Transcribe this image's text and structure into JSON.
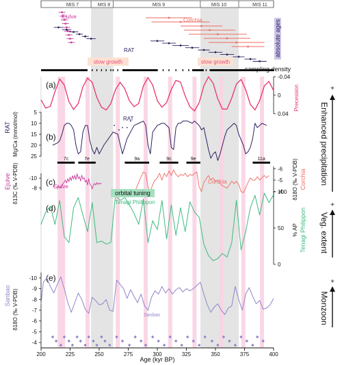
{
  "mis_labels": [
    "MIS 7",
    "MIS 8",
    "MIS 9",
    "MIS 10",
    "MIS 11"
  ],
  "panels": {
    "a": "(a)",
    "b": "(b)",
    "c": "(c)",
    "d": "(d)",
    "e": "(e)"
  },
  "top_labels": {
    "ejulve": "Ejulve",
    "corchia": "Corchia",
    "rat": "RAT",
    "absolute_ages": "absolute ages",
    "slow_growth_1": "slow growth",
    "slow_growth_2": "slow growth",
    "sampling_density": "sampling density"
  },
  "axis_labels": {
    "precession": "Precession",
    "rat_series": "RAT",
    "mgca": "Mg/Ca (mmol/mol)",
    "ejulve_series": "Ejulve",
    "d13c": "δ13C (‰ V-PDB)",
    "d18o_corchia": "δ18O (‰ V-PDB)",
    "corchia_series": "Corchia",
    "ap": "% AP",
    "tenagi": "Tenagi Philippon",
    "sanbao_series": "Sanbao",
    "d18o_sanbao": "δ18O (‰ V-PDB)",
    "xlabel": "Age (kyr BP)"
  },
  "annotations": {
    "rat_inline": "RAT",
    "ejulve_inline": "Ejulve",
    "corchia_inline": "Corchia",
    "tenagi_inline": "Tenagi Philippon",
    "orbital_tuning": "orbital tuning",
    "sanbao_inline": "Sanbao"
  },
  "substages": [
    "7c",
    "7e",
    "9a",
    "9c",
    "9e",
    "11a"
  ],
  "right_side": {
    "enhanced_precipitation": "Enhanced precipitation",
    "veg_extent": "Veg. extent",
    "monzoon": "Monzoon",
    "plus": "+"
  },
  "colors": {
    "precession": "#e8336d",
    "rat": "#2e2060",
    "ejulve": "#c8399c",
    "corchia": "#ef6a5f",
    "tenagi": "#3dba7e",
    "sanbao": "#8f86c8",
    "glacial_band": "#e4e4e4",
    "pink_band": "#f9d3e3",
    "absolute_ages_box": "#cdc6e6",
    "slow_growth_box": "#fce1d2",
    "orbital_box": "#a4e0bf"
  },
  "chart_data": {
    "type": "line",
    "xlabel": "Age (kyr BP)",
    "xlim": [
      200,
      400
    ],
    "xticks": [
      200,
      225,
      250,
      275,
      300,
      325,
      350,
      375,
      400
    ],
    "glacial_intervals": [
      [
        243,
        262
      ],
      [
        337,
        370
      ]
    ],
    "insolation_maxima_bands": [
      216,
      219,
      240,
      266,
      290,
      311,
      332,
      355,
      374,
      390
    ],
    "mis_boundaries": [
      200,
      243,
      262,
      337,
      370,
      400
    ],
    "substage_bars": [
      [
        214,
        229
      ],
      [
        232,
        247
      ],
      [
        272,
        293
      ],
      [
        302,
        318
      ],
      [
        325,
        337
      ],
      [
        382,
        397
      ]
    ],
    "precession": {
      "axis": "precession",
      "ylim": [
        0.04,
        -0.04
      ],
      "ticks": [
        -0.04,
        0,
        0.04
      ],
      "x": [
        200,
        204,
        208,
        212,
        216,
        220,
        224,
        228,
        232,
        236,
        240,
        244,
        248,
        252,
        256,
        260,
        264,
        268,
        272,
        276,
        280,
        284,
        288,
        292,
        296,
        300,
        304,
        308,
        312,
        316,
        320,
        324,
        328,
        332,
        336,
        340,
        344,
        348,
        352,
        356,
        360,
        364,
        368,
        372,
        376,
        380,
        384,
        388,
        392,
        396,
        400
      ],
      "y": [
        0.01,
        0.028,
        0.024,
        -0.008,
        -0.035,
        -0.022,
        0.014,
        0.031,
        0.018,
        -0.018,
        -0.037,
        -0.028,
        0.005,
        0.026,
        0.032,
        0.018,
        -0.012,
        -0.028,
        -0.014,
        0.012,
        0.025,
        0.018,
        -0.02,
        -0.038,
        -0.022,
        0.012,
        0.026,
        0.016,
        -0.012,
        -0.032,
        -0.028,
        0.002,
        0.025,
        0.034,
        0.016,
        -0.02,
        -0.04,
        -0.026,
        0.008,
        0.03,
        0.03,
        0.006,
        -0.024,
        -0.034,
        -0.012,
        0.02,
        0.032,
        0.012,
        -0.02,
        -0.03,
        -0.01
      ]
    },
    "rat_mgca": {
      "axis": "mgca",
      "ylim": [
        25,
        5
      ],
      "ticks": [
        5,
        10,
        15,
        20,
        25
      ],
      "x": [
        210,
        214,
        216,
        218,
        220,
        222,
        224,
        226,
        228,
        230,
        232,
        234,
        236,
        238,
        240,
        242,
        244,
        246,
        248,
        250,
        254,
        258,
        262,
        266,
        270,
        274,
        280,
        284,
        288,
        290,
        292,
        294,
        296,
        300,
        304,
        306,
        308,
        310,
        312,
        314,
        316,
        318,
        320,
        322,
        326,
        330,
        332,
        334,
        336,
        338,
        340,
        342,
        344,
        346,
        348,
        350,
        352,
        354,
        356,
        358,
        360,
        364,
        366,
        368,
        370,
        374,
        376,
        378,
        380,
        382,
        384,
        386,
        388,
        390,
        394
      ],
      "y": [
        20,
        19,
        18,
        15,
        11,
        10,
        10,
        11,
        13,
        20,
        24,
        23,
        14,
        11,
        11,
        18,
        22,
        24,
        21,
        24,
        20,
        17,
        14,
        15,
        24,
        17,
        11,
        10,
        9,
        11,
        20,
        24,
        14,
        11,
        10,
        10,
        11,
        12,
        21,
        22,
        12,
        10,
        10,
        9,
        9,
        10,
        9,
        10,
        11,
        13,
        12,
        17,
        22,
        26,
        24,
        23,
        27,
        24,
        20,
        16,
        13,
        11,
        10,
        11,
        15,
        20,
        24,
        23,
        21,
        17,
        10,
        12,
        11,
        10,
        11
      ]
    },
    "rat_points": {
      "x": [
        263,
        267,
        270,
        274,
        277
      ],
      "y": [
        11,
        13,
        12,
        12,
        9
      ]
    },
    "ejulve_d13c": {
      "axis": "d13c",
      "ylim": [
        -7.5,
        -11
      ],
      "ticks": [
        -8,
        -10
      ],
      "x": [
        213,
        215,
        217,
        219,
        221,
        222,
        223,
        224,
        225,
        226,
        227,
        228,
        229,
        230,
        231,
        232,
        233,
        234,
        235,
        236,
        237,
        238,
        239,
        240,
        241,
        242,
        243,
        244,
        245,
        246,
        247,
        248,
        249,
        250,
        251,
        252
      ],
      "y": [
        -8.1,
        -8.3,
        -8.0,
        -8.9,
        -9.6,
        -9.0,
        -9.9,
        -9.3,
        -10.2,
        -9.5,
        -10.5,
        -9.8,
        -10.6,
        -9.7,
        -10.9,
        -9.9,
        -10.3,
        -9.4,
        -10.6,
        -9.8,
        -10.1,
        -9.2,
        -9.6,
        -8.6,
        -9.9,
        -8.8,
        -8.5,
        -7.8,
        -8.6,
        -8.9,
        -8.6,
        -9.1,
        -8.7,
        -9.0,
        -8.8,
        -9.0
      ]
    },
    "corchia_d18o": {
      "axis": "d18o_corchia",
      "ylim": [
        -3.5,
        -6.2
      ],
      "ticks": [
        -4,
        -5,
        -6
      ],
      "x": [
        280,
        282,
        284,
        286,
        288,
        290,
        292,
        294,
        296,
        298,
        300,
        302,
        304,
        306,
        308,
        310,
        312,
        314,
        316,
        318,
        320,
        322,
        324,
        326,
        328,
        330,
        332,
        334,
        336,
        338,
        340,
        342,
        344,
        346,
        348,
        350,
        352,
        354,
        356,
        358,
        360,
        362,
        364,
        366,
        368,
        370,
        372,
        374,
        376,
        378,
        380,
        382,
        384,
        386,
        388,
        390,
        392,
        394,
        396
      ],
      "y": [
        -3.9,
        -4.3,
        -4.8,
        -5.3,
        -5.7,
        -5.6,
        -4.4,
        -4.0,
        -4.6,
        -5.0,
        -5.2,
        -5.6,
        -5.0,
        -5.6,
        -5.3,
        -5.8,
        -5.4,
        -5.9,
        -5.5,
        -5.3,
        -5.5,
        -5.4,
        -5.6,
        -5.3,
        -5.5,
        -5.4,
        -5.6,
        -5.7,
        -4.4,
        -4.0,
        -4.8,
        -5.1,
        -5.4,
        -5.0,
        -5.2,
        -4.9,
        -5.0,
        -4.7,
        -4.5,
        -4.4,
        -4.3,
        -4.6,
        -4.9,
        -4.7,
        -4.9,
        -4.6,
        -4.0,
        -3.9,
        -4.3,
        -4.8,
        -5.2,
        -5.0,
        -5.0,
        -5.3,
        -5.0,
        -5.2,
        -5.4,
        -5.2,
        -5.4
      ]
    },
    "tenagi_ap": {
      "axis": "ap",
      "ylim": [
        0,
        100
      ],
      "ticks": [
        0,
        50,
        100
      ],
      "x": [
        200,
        204,
        208,
        212,
        216,
        220,
        224,
        228,
        232,
        236,
        240,
        244,
        248,
        252,
        256,
        260,
        264,
        268,
        272,
        276,
        280,
        284,
        288,
        292,
        296,
        300,
        304,
        308,
        312,
        316,
        320,
        324,
        328,
        332,
        336,
        340,
        344,
        348,
        352,
        356,
        360,
        364,
        368,
        372,
        376,
        380,
        384,
        388,
        392,
        396,
        400
      ],
      "y": [
        55,
        72,
        80,
        55,
        88,
        38,
        30,
        78,
        92,
        68,
        45,
        85,
        30,
        32,
        28,
        30,
        95,
        88,
        92,
        82,
        70,
        55,
        90,
        30,
        60,
        48,
        88,
        35,
        82,
        40,
        78,
        45,
        86,
        72,
        65,
        28,
        12,
        5,
        8,
        15,
        10,
        30,
        88,
        20,
        45,
        78,
        95,
        68,
        98,
        85,
        96
      ]
    },
    "sanbao_d18o": {
      "axis": "d18o_sanbao",
      "ylim": [
        -3.5,
        -10.5
      ],
      "ticks": [
        -4,
        -5,
        -6,
        -7,
        -8,
        -9,
        -10
      ],
      "x": [
        200,
        202,
        205,
        208,
        211,
        214,
        217,
        220,
        223,
        226,
        229,
        232,
        235,
        238,
        241,
        244,
        247,
        250,
        253,
        256,
        259,
        262,
        265,
        268,
        271,
        274,
        277,
        280,
        283,
        286,
        289,
        292,
        295,
        298,
        301,
        304,
        307,
        310,
        313,
        316,
        319,
        322,
        325,
        328,
        331,
        334,
        337,
        340,
        343,
        346,
        349,
        352,
        355,
        358,
        361,
        364,
        367,
        370,
        373,
        376,
        379,
        382,
        385,
        388,
        391,
        394,
        397,
        400
      ],
      "y": [
        -7.6,
        -9.6,
        -10.0,
        -9.2,
        -8.6,
        -9.4,
        -10.1,
        -9.0,
        -7.7,
        -6.8,
        -7.7,
        -8.6,
        -8.0,
        -7.1,
        -6.7,
        -8.2,
        -7.9,
        -7.5,
        -7.6,
        -8.0,
        -7.0,
        -6.9,
        -9.8,
        -9.4,
        -9.0,
        -8.1,
        -8.9,
        -8.3,
        -7.7,
        -8.5,
        -7.4,
        -7.0,
        -8.2,
        -8.8,
        -8.5,
        -9.2,
        -8.6,
        -9.0,
        -8.5,
        -8.9,
        -9.1,
        -8.7,
        -9.0,
        -8.8,
        -9.0,
        -9.3,
        -9.6,
        -8.5,
        -7.5,
        -6.8,
        -7.3,
        -7.6,
        -7.0,
        -6.6,
        -7.2,
        -7.4,
        -9.2,
        -8.0,
        -7.0,
        -8.5,
        -9.1,
        -8.3,
        -7.6,
        -7.9,
        -7.1,
        -7.2,
        -7.5,
        -8.1
      ]
    },
    "sanbao_dates": {
      "x": [
        210,
        213,
        217,
        220,
        224,
        227,
        231,
        234,
        238,
        241,
        245,
        248,
        252,
        255,
        259,
        265,
        270,
        276,
        281,
        286,
        290,
        296,
        301,
        306,
        311,
        316,
        321,
        326,
        331,
        336,
        341,
        347,
        352,
        357,
        362,
        367,
        372,
        377,
        382,
        386,
        391
      ]
    },
    "absolute_ages": {
      "ejulve": {
        "x": [
          218,
          219,
          220,
          221,
          222,
          223,
          224,
          225,
          226
        ],
        "err": [
          3,
          3,
          3,
          3,
          3,
          3,
          3,
          3,
          3
        ]
      },
      "corchia": {
        "x": [
          310,
          320,
          338,
          345,
          352,
          360,
          368,
          378
        ],
        "err": [
          20,
          25,
          18,
          22,
          25,
          20,
          24,
          14
        ]
      },
      "rat": {
        "x": [
          215,
          222,
          228,
          233,
          238,
          243,
          300,
          310,
          320,
          330,
          340,
          350,
          360,
          370,
          380,
          388
        ],
        "err": [
          4,
          4,
          4,
          3,
          3,
          4,
          6,
          6,
          7,
          6,
          5,
          6,
          6,
          5,
          5,
          6
        ]
      }
    },
    "sampling_density": {
      "dense": [
        [
          200,
          240
        ],
        [
          270,
          300
        ],
        [
          330,
          340
        ],
        [
          345,
          400
        ]
      ],
      "sparse_dots": [
        244,
        248,
        252,
        256,
        260,
        262,
        266,
        300,
        305,
        310,
        316,
        322,
        327,
        342
      ]
    }
  }
}
